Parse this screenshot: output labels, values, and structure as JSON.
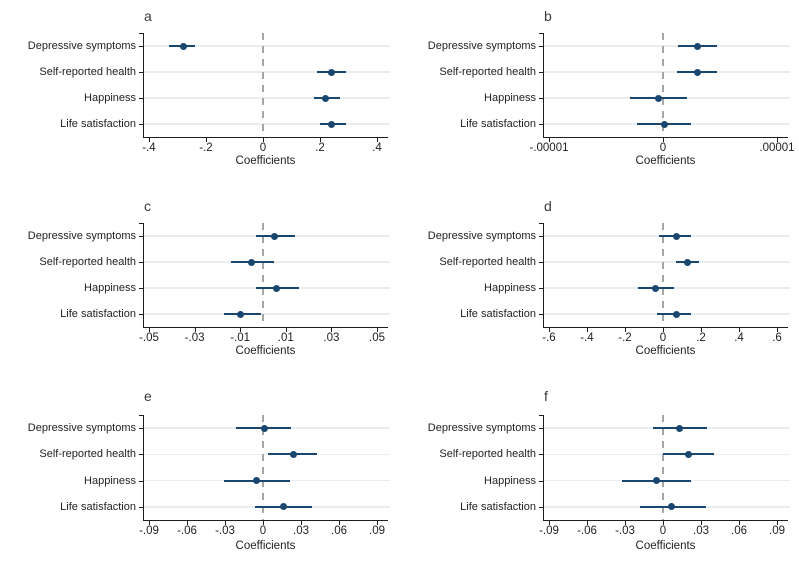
{
  "figure": {
    "background": "#ffffff",
    "marker_color": "#1a476f",
    "ci_color": "#1a476f",
    "zero_line_color": "#a6a6a6",
    "gridline_color": "#e8edf2",
    "axis_color": "#1f1f1f",
    "text_color": "#1f1f1f",
    "categories": [
      "Depressive symptoms",
      "Self-reported health",
      "Happiness",
      "Life satisfaction"
    ],
    "xlabel": "Coefficients"
  },
  "chart_data": [
    {
      "panel": "a",
      "type": "scatter",
      "subtype": "coefficient-plot-with-ci",
      "xlabel": "Coefficients",
      "categories": [
        "Depressive symptoms",
        "Self-reported health",
        "Happiness",
        "Life satisfaction"
      ],
      "xticks": [
        -0.4,
        -0.2,
        0,
        0.2,
        0.4
      ],
      "xtick_labels": [
        "-.4",
        "-.2",
        "0",
        ".2",
        ".4"
      ],
      "xlim": [
        -0.42,
        0.44
      ],
      "zero_line": true,
      "grid": "horizontal",
      "points": [
        {
          "category": "Depressive symptoms",
          "value": -0.28,
          "ci_low": -0.33,
          "ci_high": -0.24
        },
        {
          "category": "Self-reported health",
          "value": 0.24,
          "ci_low": 0.19,
          "ci_high": 0.29
        },
        {
          "category": "Happiness",
          "value": 0.22,
          "ci_low": 0.18,
          "ci_high": 0.27
        },
        {
          "category": "Life satisfaction",
          "value": 0.24,
          "ci_low": 0.2,
          "ci_high": 0.29
        }
      ]
    },
    {
      "panel": "b",
      "type": "scatter",
      "subtype": "coefficient-plot-with-ci",
      "xlabel": "Coefficients",
      "categories": [
        "Depressive symptoms",
        "Self-reported health",
        "Happiness",
        "Life satisfaction"
      ],
      "xticks": [
        -1e-05,
        0,
        1e-05
      ],
      "xtick_labels": [
        "-.00001",
        "0",
        ".00001"
      ],
      "xlim": [
        -1.05e-05,
        1.1e-05
      ],
      "zero_line": true,
      "grid": "horizontal",
      "points": [
        {
          "category": "Depressive symptoms",
          "value": 3e-06,
          "ci_low": 1.3e-06,
          "ci_high": 4.7e-06
        },
        {
          "category": "Self-reported health",
          "value": 3e-06,
          "ci_low": 1.2e-06,
          "ci_high": 4.7e-06
        },
        {
          "category": "Happiness",
          "value": -4e-07,
          "ci_low": -2.9e-06,
          "ci_high": 2.1e-06
        },
        {
          "category": "Life satisfaction",
          "value": 1e-07,
          "ci_low": -2.3e-06,
          "ci_high": 2.5e-06
        }
      ]
    },
    {
      "panel": "c",
      "type": "scatter",
      "subtype": "coefficient-plot-with-ci",
      "xlabel": "Coefficients",
      "categories": [
        "Depressive symptoms",
        "Self-reported health",
        "Happiness",
        "Life satisfaction"
      ],
      "xticks": [
        -0.05,
        -0.03,
        -0.01,
        0.01,
        0.03,
        0.05
      ],
      "xtick_labels": [
        "-.05",
        "-.03",
        "-.01",
        ".01",
        ".03",
        ".05"
      ],
      "xlim": [
        -0.0525,
        0.055
      ],
      "zero_line": true,
      "grid": "horizontal",
      "points": [
        {
          "category": "Depressive symptoms",
          "value": 0.005,
          "ci_low": -0.003,
          "ci_high": 0.014
        },
        {
          "category": "Self-reported health",
          "value": -0.005,
          "ci_low": -0.014,
          "ci_high": 0.005
        },
        {
          "category": "Happiness",
          "value": 0.006,
          "ci_low": -0.003,
          "ci_high": 0.016
        },
        {
          "category": "Life satisfaction",
          "value": -0.01,
          "ci_low": -0.017,
          "ci_high": -0.001
        }
      ]
    },
    {
      "panel": "d",
      "type": "scatter",
      "subtype": "coefficient-plot-with-ci",
      "xlabel": "Coefficients",
      "categories": [
        "Depressive symptoms",
        "Self-reported health",
        "Happiness",
        "Life satisfaction"
      ],
      "xticks": [
        -0.6,
        -0.4,
        -0.2,
        0,
        0.2,
        0.4,
        0.6
      ],
      "xtick_labels": [
        "-.6",
        "-.4",
        "-.2",
        "0",
        ".2",
        ".4",
        ".6"
      ],
      "xlim": [
        -0.63,
        0.66
      ],
      "zero_line": true,
      "grid": "horizontal",
      "points": [
        {
          "category": "Depressive symptoms",
          "value": 0.07,
          "ci_low": -0.02,
          "ci_high": 0.15
        },
        {
          "category": "Self-reported health",
          "value": 0.13,
          "ci_low": 0.07,
          "ci_high": 0.19
        },
        {
          "category": "Happiness",
          "value": -0.04,
          "ci_low": -0.13,
          "ci_high": 0.06
        },
        {
          "category": "Life satisfaction",
          "value": 0.07,
          "ci_low": -0.03,
          "ci_high": 0.15
        }
      ]
    },
    {
      "panel": "e",
      "type": "scatter",
      "subtype": "coefficient-plot-with-ci",
      "xlabel": "Coefficients",
      "categories": [
        "Depressive symptoms",
        "Self-reported health",
        "Happiness",
        "Life satisfaction"
      ],
      "xticks": [
        -0.09,
        -0.06,
        -0.03,
        0,
        0.03,
        0.06,
        0.09
      ],
      "xtick_labels": [
        "-.09",
        "-.06",
        "-.03",
        "0",
        ".03",
        ".06",
        ".09"
      ],
      "xlim": [
        -0.0945,
        0.099
      ],
      "zero_line": true,
      "grid": "horizontal",
      "points": [
        {
          "category": "Depressive symptoms",
          "value": 0.001,
          "ci_low": -0.021,
          "ci_high": 0.022
        },
        {
          "category": "Self-reported health",
          "value": 0.024,
          "ci_low": 0.004,
          "ci_high": 0.043
        },
        {
          "category": "Happiness",
          "value": -0.005,
          "ci_low": -0.031,
          "ci_high": 0.021
        },
        {
          "category": "Life satisfaction",
          "value": 0.016,
          "ci_low": -0.006,
          "ci_high": 0.039
        }
      ]
    },
    {
      "panel": "f",
      "type": "scatter",
      "subtype": "coefficient-plot-with-ci",
      "xlabel": "Coefficients",
      "categories": [
        "Depressive symptoms",
        "Self-reported health",
        "Happiness",
        "Life satisfaction"
      ],
      "xticks": [
        -0.09,
        -0.06,
        -0.03,
        0,
        0.03,
        0.06,
        0.09
      ],
      "xtick_labels": [
        "-.09",
        "-.06",
        "-.03",
        "0",
        ".03",
        ".06",
        ".09"
      ],
      "xlim": [
        -0.0945,
        0.099
      ],
      "zero_line": true,
      "grid": "horizontal",
      "points": [
        {
          "category": "Depressive symptoms",
          "value": 0.013,
          "ci_low": -0.008,
          "ci_high": 0.035
        },
        {
          "category": "Self-reported health",
          "value": 0.02,
          "ci_low": 0.0,
          "ci_high": 0.04
        },
        {
          "category": "Happiness",
          "value": -0.005,
          "ci_low": -0.032,
          "ci_high": 0.022
        },
        {
          "category": "Life satisfaction",
          "value": 0.007,
          "ci_low": -0.018,
          "ci_high": 0.034
        }
      ]
    }
  ]
}
